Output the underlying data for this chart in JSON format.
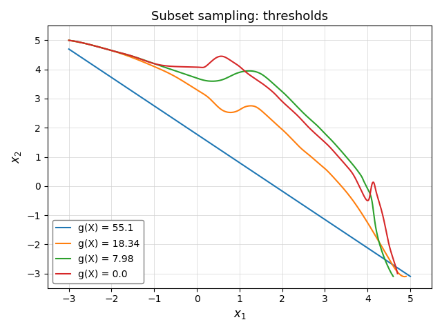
{
  "title": "Subset sampling: thresholds",
  "xlabel": "$x_1$",
  "ylabel": "$x_2$",
  "xlim": [
    -3.5,
    5.5
  ],
  "ylim": [
    -3.5,
    5.5
  ],
  "xticks": [
    -3,
    -2,
    -1,
    0,
    1,
    2,
    3,
    4,
    5
  ],
  "yticks": [
    -3,
    -2,
    -1,
    0,
    1,
    2,
    3,
    4,
    5
  ],
  "levels": [
    55.1,
    18.34,
    7.98,
    0.0
  ],
  "colors": [
    "#1f77b4",
    "#ff7f0e",
    "#2ca02c",
    "#d62728"
  ],
  "labels": [
    "g(X) = 55.1",
    "g(X) = 18.34",
    "g(X) = 7.98",
    "g(X) = 0.0"
  ],
  "linewidth": 1.5,
  "grid": true,
  "legend_loc": "lower left",
  "title_fontsize": 13,
  "label_fontsize": 12,
  "figsize": [
    6.4,
    4.8
  ],
  "dpi": 100
}
